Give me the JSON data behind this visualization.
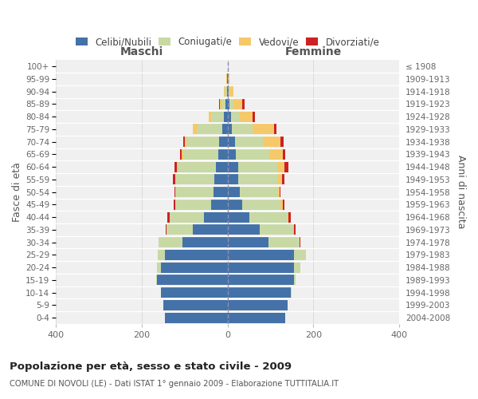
{
  "age_groups": [
    "0-4",
    "5-9",
    "10-14",
    "15-19",
    "20-24",
    "25-29",
    "30-34",
    "35-39",
    "40-44",
    "45-49",
    "50-54",
    "55-59",
    "60-64",
    "65-69",
    "70-74",
    "75-79",
    "80-84",
    "85-89",
    "90-94",
    "95-99",
    "100+"
  ],
  "birth_years": [
    "2004-2008",
    "1999-2003",
    "1994-1998",
    "1989-1993",
    "1984-1988",
    "1979-1983",
    "1974-1978",
    "1969-1973",
    "1964-1968",
    "1959-1963",
    "1954-1958",
    "1949-1953",
    "1944-1948",
    "1939-1943",
    "1934-1938",
    "1929-1933",
    "1924-1928",
    "1919-1923",
    "1914-1918",
    "1909-1913",
    "≤ 1908"
  ],
  "males_celibi": [
    145,
    150,
    155,
    165,
    155,
    145,
    105,
    80,
    55,
    38,
    32,
    30,
    28,
    22,
    20,
    12,
    8,
    5,
    2,
    1,
    0
  ],
  "males_coniugati": [
    0,
    0,
    1,
    2,
    10,
    18,
    55,
    62,
    80,
    82,
    88,
    90,
    88,
    82,
    75,
    58,
    30,
    8,
    4,
    1,
    0
  ],
  "males_vedovi": [
    0,
    0,
    0,
    0,
    0,
    0,
    0,
    0,
    0,
    1,
    1,
    2,
    2,
    3,
    5,
    10,
    5,
    5,
    3,
    1,
    0
  ],
  "males_divorziati": [
    0,
    0,
    0,
    0,
    0,
    0,
    1,
    2,
    5,
    4,
    3,
    5,
    5,
    4,
    4,
    1,
    1,
    2,
    0,
    0,
    0
  ],
  "females_nubili": [
    135,
    140,
    148,
    155,
    155,
    155,
    95,
    75,
    50,
    35,
    28,
    25,
    25,
    20,
    18,
    10,
    8,
    4,
    2,
    1,
    0
  ],
  "females_coniugate": [
    0,
    0,
    1,
    3,
    15,
    28,
    72,
    78,
    90,
    88,
    88,
    90,
    90,
    78,
    65,
    48,
    20,
    10,
    3,
    1,
    0
  ],
  "females_vedove": [
    0,
    0,
    0,
    0,
    0,
    0,
    0,
    2,
    2,
    5,
    5,
    12,
    18,
    30,
    40,
    50,
    30,
    20,
    8,
    2,
    0
  ],
  "females_divorziate": [
    0,
    0,
    0,
    0,
    0,
    0,
    2,
    3,
    6,
    5,
    3,
    6,
    8,
    6,
    8,
    5,
    5,
    5,
    0,
    0,
    0
  ],
  "color_celibi": "#4472a8",
  "color_coniugati": "#c8d9a5",
  "color_vedovi": "#f5c96a",
  "color_divorziati": "#cc2222",
  "title": "Popolazione per età, sesso e stato civile - 2009",
  "subtitle": "COMUNE DI NOVOLI (LE) - Dati ISTAT 1° gennaio 2009 - Elaborazione TUTTITALIA.IT",
  "label_maschi": "Maschi",
  "label_femmine": "Femmine",
  "legend_celibi": "Celibi/Nubili",
  "legend_coniugati": "Coniugati/e",
  "legend_vedovi": "Vedovi/e",
  "legend_divorziati": "Divorziati/e",
  "ylabel_left": "Fasce di età",
  "ylabel_right": "Anni di nascita",
  "xlim": 400,
  "bg_axes": "#f0f0f0",
  "bg_fig": "#ffffff"
}
